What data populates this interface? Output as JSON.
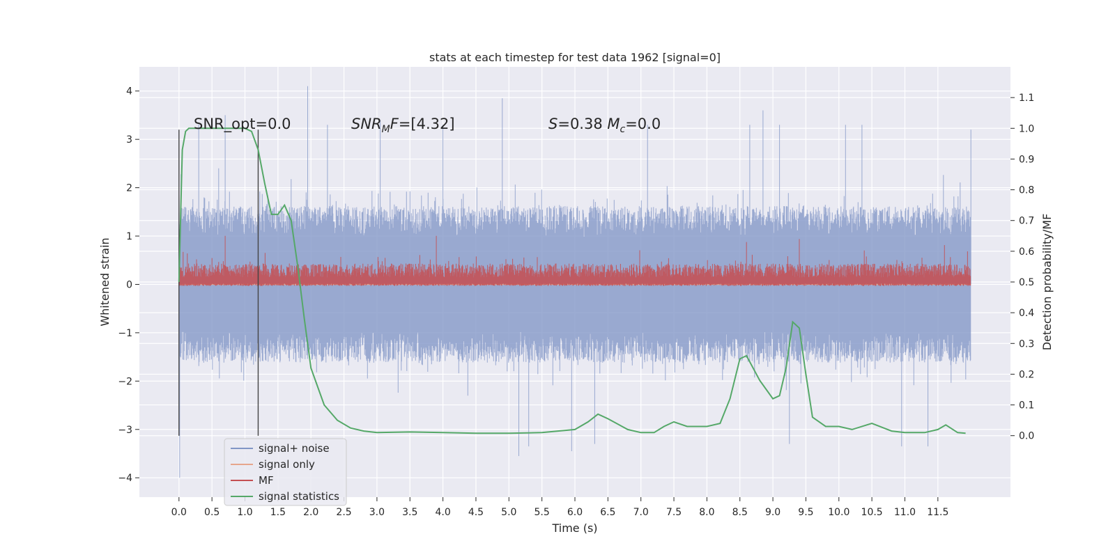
{
  "chart_data": {
    "type": "line",
    "title": "stats at each timestep for test data 1962 [signal=0]",
    "xlabel": "Time (s)",
    "ylabel": "Whitened strain",
    "ylabel_right": "Detection probability/MF",
    "xlim": [
      -0.6,
      12.6
    ],
    "ylim": [
      -4.4,
      4.5
    ],
    "ylim_right": [
      -0.2,
      1.2
    ],
    "x_ticks": [
      0.0,
      0.5,
      1.0,
      1.5,
      2.0,
      2.5,
      3.0,
      3.5,
      4.0,
      4.5,
      5.0,
      5.5,
      6.0,
      6.5,
      7.0,
      7.5,
      8.0,
      8.5,
      9.0,
      9.5,
      10.0,
      10.5,
      11.0,
      11.5
    ],
    "x_tick_labels": [
      "0.0",
      "0.5",
      "1.0",
      "1.5",
      "2.0",
      "2.5",
      "3.0",
      "3.5",
      "4.0",
      "4.5",
      "5.0",
      "5.5",
      "6.0",
      "6.5",
      "7.0",
      "7.5",
      "8.0",
      "8.5",
      "9.0",
      "9.5",
      "10.0",
      "10.5",
      "11.0",
      "11.5"
    ],
    "y_ticks": [
      -4,
      -3,
      -2,
      -1,
      0,
      1,
      2,
      3,
      4
    ],
    "y_tick_labels": [
      "−4",
      "−3",
      "−2",
      "−1",
      "0",
      "1",
      "2",
      "3",
      "4"
    ],
    "y2_ticks": [
      0.0,
      0.1,
      0.2,
      0.3,
      0.4,
      0.5,
      0.6,
      0.7,
      0.8,
      0.9,
      1.0,
      1.1
    ],
    "y2_tick_labels": [
      "0.0",
      "0.1",
      "0.2",
      "0.3",
      "0.4",
      "0.5",
      "0.6",
      "0.7",
      "0.8",
      "0.9",
      "1.0",
      "1.1"
    ],
    "grid": true,
    "legend_position": "lower-left",
    "colors": {
      "noise": "#8196c6",
      "signal": "#e6a58c",
      "mf": "#c44e52",
      "stats": "#55a868",
      "background": "#eaeaf2",
      "marker_line": "#444444"
    },
    "series": [
      {
        "name": "signal+ noise",
        "axis": "left",
        "style": "dense-noise",
        "x_range": [
          0.0,
          12.0
        ],
        "typical_range": [
          -1.8,
          1.8
        ],
        "peak_values": [
          [
            0.01,
            -4.0
          ],
          [
            0.3,
            3.3
          ],
          [
            0.7,
            3.5
          ],
          [
            1.95,
            4.1
          ],
          [
            2.25,
            3.3
          ],
          [
            3.05,
            3.4
          ],
          [
            4.0,
            3.3
          ],
          [
            4.9,
            3.85
          ],
          [
            5.15,
            -3.55
          ],
          [
            5.3,
            -3.35
          ],
          [
            5.95,
            -3.45
          ],
          [
            6.3,
            -3.3
          ],
          [
            7.1,
            3.3
          ],
          [
            8.65,
            3.3
          ],
          [
            8.85,
            3.6
          ],
          [
            9.1,
            3.3
          ],
          [
            9.25,
            -3.3
          ],
          [
            10.1,
            3.3
          ],
          [
            10.35,
            3.3
          ],
          [
            10.95,
            -3.35
          ],
          [
            11.35,
            -3.35
          ],
          [
            12.0,
            3.2
          ]
        ]
      },
      {
        "name": "signal only",
        "axis": "left",
        "style": "flat",
        "x_range": [
          0.0,
          12.0
        ],
        "value": 0.0
      },
      {
        "name": "MF",
        "axis": "right",
        "style": "dense-noise",
        "x_range": [
          0.0,
          12.0
        ],
        "typical_range": [
          0.5,
          0.56
        ],
        "peak_values": [
          [
            0.7,
            0.65
          ],
          [
            3.9,
            0.65
          ],
          [
            8.6,
            0.63
          ],
          [
            9.4,
            0.64
          ],
          [
            11.6,
            0.62
          ]
        ]
      },
      {
        "name": "signal statistics",
        "axis": "right",
        "style": "line",
        "x": [
          0.0,
          0.05,
          0.1,
          0.15,
          0.2,
          0.3,
          0.5,
          0.8,
          1.0,
          1.1,
          1.2,
          1.3,
          1.4,
          1.5,
          1.6,
          1.7,
          1.8,
          1.9,
          2.0,
          2.2,
          2.4,
          2.6,
          2.8,
          3.0,
          3.5,
          4.0,
          4.5,
          5.0,
          5.5,
          6.0,
          6.2,
          6.35,
          6.5,
          6.8,
          7.0,
          7.2,
          7.35,
          7.5,
          7.7,
          8.0,
          8.2,
          8.35,
          8.5,
          8.6,
          8.8,
          9.0,
          9.1,
          9.2,
          9.3,
          9.4,
          9.5,
          9.6,
          9.8,
          10.0,
          10.2,
          10.5,
          10.8,
          11.0,
          11.3,
          11.5,
          11.62,
          11.8,
          11.92
        ],
        "y": [
          0.5,
          0.93,
          0.99,
          1.0,
          1.0,
          1.0,
          1.0,
          1.0,
          1.0,
          0.99,
          0.93,
          0.82,
          0.72,
          0.72,
          0.75,
          0.7,
          0.55,
          0.38,
          0.22,
          0.1,
          0.05,
          0.025,
          0.015,
          0.01,
          0.012,
          0.01,
          0.008,
          0.008,
          0.01,
          0.02,
          0.045,
          0.07,
          0.055,
          0.02,
          0.01,
          0.01,
          0.03,
          0.045,
          0.03,
          0.03,
          0.04,
          0.12,
          0.25,
          0.26,
          0.18,
          0.12,
          0.13,
          0.22,
          0.37,
          0.35,
          0.2,
          0.06,
          0.03,
          0.03,
          0.02,
          0.04,
          0.015,
          0.01,
          0.01,
          0.02,
          0.035,
          0.01,
          0.008
        ]
      }
    ],
    "vertical_lines": [
      0.0,
      1.2
    ],
    "annotations": [
      {
        "id": "snr_opt",
        "text": "SNR_opt=0.0",
        "x": 0.2,
        "y_right": 0.995
      },
      {
        "id": "snr_mf",
        "text": "SNR_MF=[4.32]",
        "x": 2.6,
        "y_right": 0.995
      },
      {
        "id": "s_mc",
        "text": "S=0.38   M_c=0.0",
        "x": 5.6,
        "y_right": 0.995
      }
    ]
  }
}
